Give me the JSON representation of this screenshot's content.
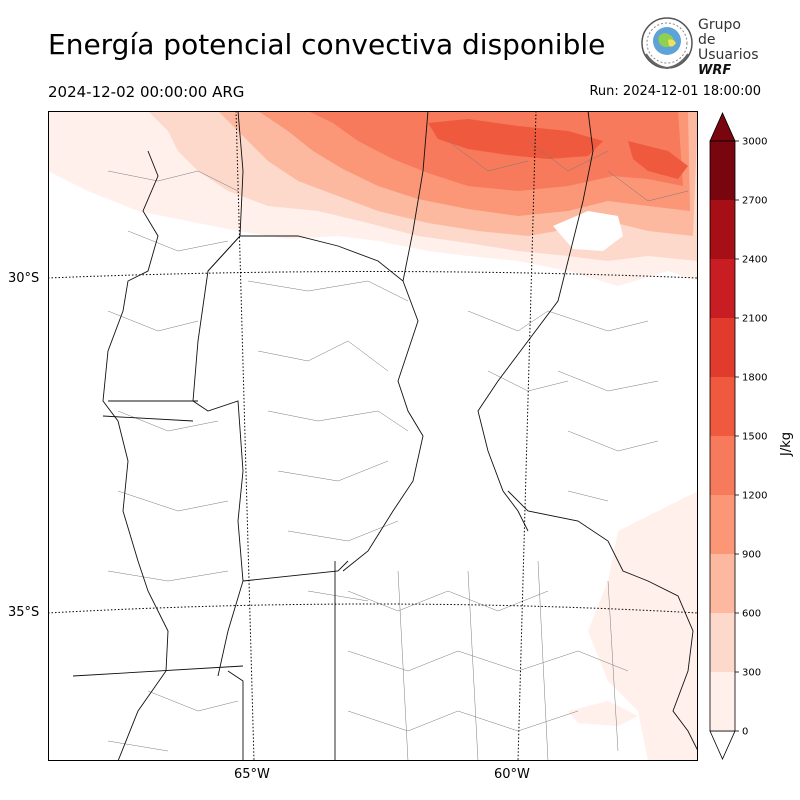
{
  "title": "Energía potencial convectiva disponible",
  "valid_time": "2024-12-02 00:00:00 ARG",
  "run_time": "Run: 2024-12-01 18:00:00",
  "logo": {
    "line1": "Grupo de",
    "line2": "Usuarios",
    "line3": "WRF",
    "icon": "globe-seal-icon"
  },
  "map": {
    "lat_labels": [
      "30°S",
      "35°S"
    ],
    "lon_labels": [
      "65°W",
      "60°W"
    ]
  },
  "colorbar": {
    "unit": "J/kg",
    "ticks": [
      "0",
      "300",
      "600",
      "900",
      "1200",
      "1500",
      "1800",
      "2100",
      "2400",
      "2700",
      "3000"
    ],
    "levels": [
      0,
      300,
      600,
      900,
      1200,
      1500,
      1800,
      2100,
      2400,
      2700,
      3000
    ],
    "colors": [
      "#fff0eb",
      "#fdd9cb",
      "#fcb9a0",
      "#fb9677",
      "#f67a5b",
      "#ef5a3f",
      "#e03b2c",
      "#c81d22",
      "#a50f15",
      "#79060e"
    ],
    "extend": "both"
  },
  "chart_data": {
    "type": "heatmap",
    "title": "Energía potencial convectiva disponible",
    "variable_unit": "J/kg",
    "value_range": [
      0,
      3000
    ],
    "contour_levels": [
      0,
      300,
      600,
      900,
      1200,
      1500,
      1800,
      2100,
      2400,
      2700,
      3000
    ],
    "lat_ticks": [
      "30°S",
      "35°S"
    ],
    "lon_ticks": [
      "65°W",
      "60°W"
    ],
    "regions": [
      {
        "area": "north (north of ~30°S, east of ~64°W)",
        "cape_range_jkg": [
          600,
          1800
        ]
      },
      {
        "area": "northwest (north of ~30°S, west of ~64°W)",
        "cape_range_jkg": [
          0,
          600
        ]
      },
      {
        "area": "southeast coast near 35°S-37°S, 58°W",
        "cape_range_jkg": [
          0,
          300
        ]
      }
    ]
  }
}
